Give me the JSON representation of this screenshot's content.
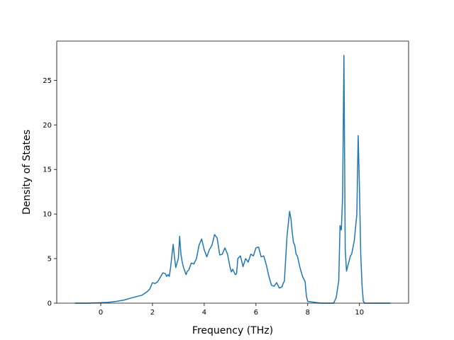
{
  "chart_data": {
    "type": "line",
    "title": "",
    "xlabel": "Frequency (THz)",
    "ylabel": "Density of States",
    "xlim": [
      -1.7,
      11.9
    ],
    "ylim": [
      0,
      29.4
    ],
    "xticks": [
      0,
      2,
      4,
      6,
      8,
      10
    ],
    "yticks": [
      0,
      5,
      10,
      15,
      20,
      25
    ],
    "grid": false,
    "legend": "none",
    "series": [
      {
        "color": "#1f77b4",
        "x": [
          -1.0,
          -0.5,
          0.0,
          0.3,
          0.6,
          0.9,
          1.2,
          1.4,
          1.6,
          1.8,
          1.9,
          2.0,
          2.1,
          2.2,
          2.3,
          2.4,
          2.5,
          2.55,
          2.6,
          2.65,
          2.7,
          2.8,
          2.85,
          2.9,
          3.0,
          3.05,
          3.1,
          3.15,
          3.2,
          3.3,
          3.35,
          3.4,
          3.5,
          3.6,
          3.7,
          3.8,
          3.9,
          4.0,
          4.1,
          4.2,
          4.3,
          4.4,
          4.5,
          4.6,
          4.7,
          4.8,
          4.9,
          5.0,
          5.05,
          5.1,
          5.2,
          5.25,
          5.3,
          5.4,
          5.5,
          5.6,
          5.7,
          5.8,
          5.9,
          6.0,
          6.1,
          6.2,
          6.3,
          6.4,
          6.5,
          6.6,
          6.7,
          6.8,
          6.9,
          7.0,
          7.05,
          7.1,
          7.15,
          7.2,
          7.3,
          7.35,
          7.4,
          7.45,
          7.5,
          7.55,
          7.6,
          7.7,
          7.8,
          7.9,
          7.95,
          8.0,
          8.5,
          9.0,
          9.1,
          9.2,
          9.25,
          9.3,
          9.35,
          9.4,
          9.45,
          9.5,
          9.55,
          9.6,
          9.65,
          9.7,
          9.8,
          9.9,
          9.95,
          10.0,
          10.05,
          10.1,
          10.15,
          10.2,
          10.3,
          11.2
        ],
        "y": [
          0,
          0,
          0.05,
          0.1,
          0.2,
          0.35,
          0.6,
          0.75,
          0.9,
          1.3,
          1.6,
          2.3,
          2.2,
          2.4,
          2.9,
          3.4,
          3.3,
          3.0,
          3.2,
          3.0,
          4.0,
          6.6,
          5.2,
          4.0,
          5.0,
          7.5,
          5.5,
          4.6,
          4.0,
          3.2,
          3.6,
          3.7,
          4.5,
          4.4,
          5.0,
          6.5,
          7.2,
          6.0,
          5.2,
          6.0,
          6.5,
          7.7,
          7.3,
          5.4,
          5.5,
          6.2,
          5.5,
          4.0,
          3.5,
          3.8,
          3.2,
          3.3,
          5.0,
          5.3,
          4.1,
          5.0,
          4.6,
          5.5,
          5.3,
          6.2,
          6.3,
          5.2,
          5.3,
          4.3,
          3.0,
          2.0,
          1.9,
          2.3,
          1.7,
          1.8,
          2.2,
          2.5,
          5.0,
          7.5,
          10.3,
          9.5,
          8.0,
          6.8,
          6.5,
          5.5,
          5.3,
          4.0,
          3.0,
          2.4,
          0.8,
          0.2,
          0,
          0,
          0.6,
          2.5,
          8.7,
          8.2,
          12.0,
          27.8,
          6.0,
          3.6,
          4.2,
          4.7,
          5.3,
          5.5,
          7.0,
          10.0,
          18.8,
          13.0,
          5.5,
          2.0,
          0.2,
          0,
          0,
          0
        ]
      }
    ]
  }
}
